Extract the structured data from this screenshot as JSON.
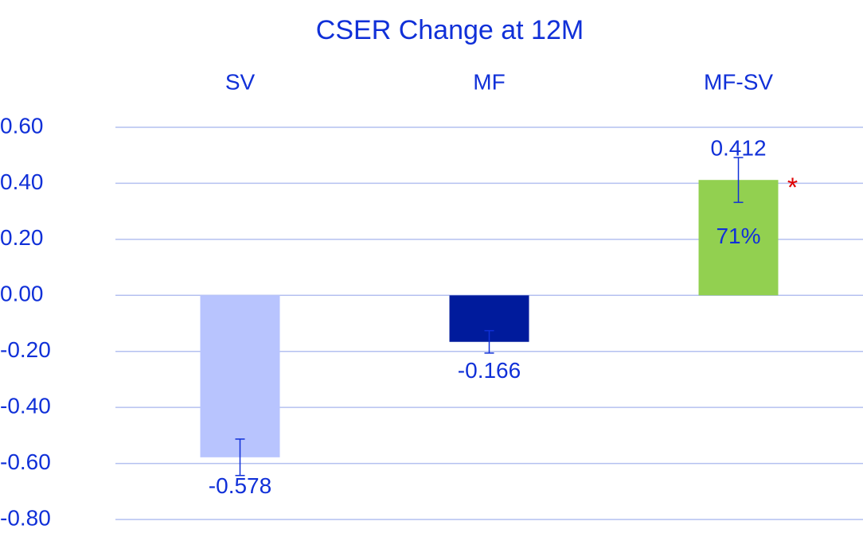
{
  "chart_data": {
    "type": "bar",
    "title": "CSER Change at 12M",
    "categories": [
      "SV",
      "MF",
      "MF-SV"
    ],
    "values": [
      -0.578,
      -0.166,
      0.412
    ],
    "errors": [
      0.065,
      0.04,
      0.08
    ],
    "colors": [
      "#b8c4fe",
      "#001b9c",
      "#92d050"
    ],
    "ylim": [
      -0.8,
      0.6
    ],
    "yticks": [
      {
        "value": 0.6,
        "label": "0.60"
      },
      {
        "value": 0.4,
        "label": "0.40"
      },
      {
        "value": 0.2,
        "label": "0.20"
      },
      {
        "value": 0,
        "label": "0.00"
      },
      {
        "value": -0.2,
        "label": "-0.20"
      },
      {
        "value": -0.4,
        "label": "-0.40"
      },
      {
        "value": -0.6,
        "label": "-0.60"
      },
      {
        "value": -0.8,
        "label": "-0.80"
      }
    ],
    "grid": true,
    "annotations": [
      {
        "text": "71%"
      },
      {
        "text": "*",
        "color": "#e00000"
      }
    ]
  }
}
